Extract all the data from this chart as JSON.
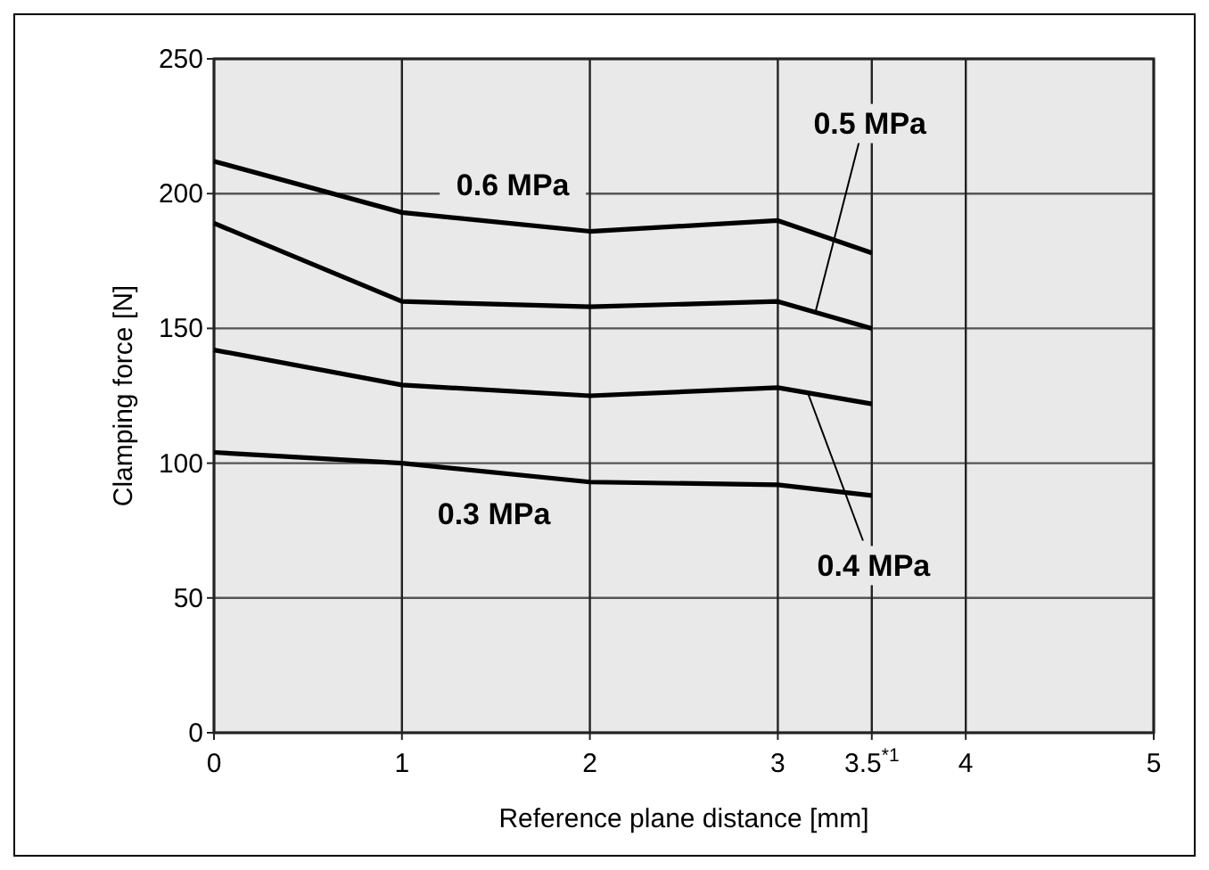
{
  "chart_data": {
    "type": "line",
    "xlabel": "Reference plane distance [mm]",
    "ylabel": "Clamping force [N]",
    "xlim": [
      0,
      5
    ],
    "xticks": [
      0,
      1,
      2,
      3,
      {
        "value": 3.5,
        "label": "3.5$^{*1}$"
      },
      4,
      5
    ],
    "ylim": [
      0,
      250
    ],
    "yticks": [
      0,
      50,
      100,
      150,
      200,
      250
    ],
    "grid": true,
    "marker": "none",
    "line_style": "solid",
    "x": [
      0,
      1,
      2,
      3,
      3.5
    ],
    "series": [
      {
        "name": "0.6 MPa",
        "color": "#000000",
        "values": [
          212,
          193,
          186,
          190,
          178
        ]
      },
      {
        "name": "0.5 MPa",
        "color": "#000000",
        "values": [
          189,
          160,
          158,
          160,
          150
        ]
      },
      {
        "name": "0.4 MPa",
        "color": "#000000",
        "values": [
          142,
          129,
          125,
          128,
          122
        ]
      },
      {
        "name": "0.3 MPa",
        "color": "#000000",
        "values": [
          104,
          100,
          93,
          92,
          88
        ]
      }
    ]
  }
}
